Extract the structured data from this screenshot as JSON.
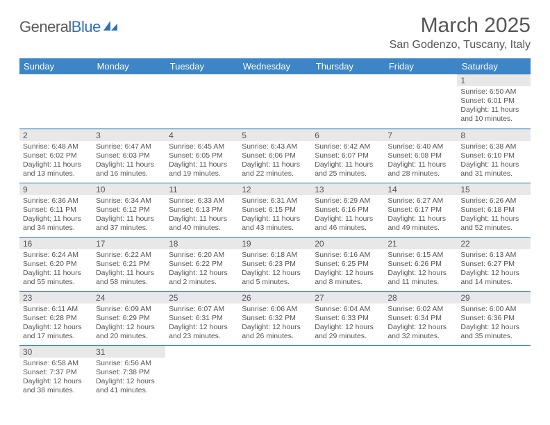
{
  "logo": {
    "general": "General",
    "blue": "Blue"
  },
  "title": {
    "month": "March 2025",
    "location": "San Godenzo, Tuscany, Italy"
  },
  "colors": {
    "header_bg": "#3d85c6",
    "header_text": "#ffffff",
    "daynum_bg": "#e8e8e8",
    "border": "#3d85c6",
    "text": "#555555",
    "logo_blue": "#2d72b5"
  },
  "weekdays": [
    "Sunday",
    "Monday",
    "Tuesday",
    "Wednesday",
    "Thursday",
    "Friday",
    "Saturday"
  ],
  "weeks": [
    [
      {
        "n": "",
        "sr": "",
        "ss": "",
        "dl1": "",
        "dl2": "",
        "empty": true
      },
      {
        "n": "",
        "sr": "",
        "ss": "",
        "dl1": "",
        "dl2": "",
        "empty": true
      },
      {
        "n": "",
        "sr": "",
        "ss": "",
        "dl1": "",
        "dl2": "",
        "empty": true
      },
      {
        "n": "",
        "sr": "",
        "ss": "",
        "dl1": "",
        "dl2": "",
        "empty": true
      },
      {
        "n": "",
        "sr": "",
        "ss": "",
        "dl1": "",
        "dl2": "",
        "empty": true
      },
      {
        "n": "",
        "sr": "",
        "ss": "",
        "dl1": "",
        "dl2": "",
        "empty": true
      },
      {
        "n": "1",
        "sr": "Sunrise: 6:50 AM",
        "ss": "Sunset: 6:01 PM",
        "dl1": "Daylight: 11 hours",
        "dl2": "and 10 minutes."
      }
    ],
    [
      {
        "n": "2",
        "sr": "Sunrise: 6:48 AM",
        "ss": "Sunset: 6:02 PM",
        "dl1": "Daylight: 11 hours",
        "dl2": "and 13 minutes."
      },
      {
        "n": "3",
        "sr": "Sunrise: 6:47 AM",
        "ss": "Sunset: 6:03 PM",
        "dl1": "Daylight: 11 hours",
        "dl2": "and 16 minutes."
      },
      {
        "n": "4",
        "sr": "Sunrise: 6:45 AM",
        "ss": "Sunset: 6:05 PM",
        "dl1": "Daylight: 11 hours",
        "dl2": "and 19 minutes."
      },
      {
        "n": "5",
        "sr": "Sunrise: 6:43 AM",
        "ss": "Sunset: 6:06 PM",
        "dl1": "Daylight: 11 hours",
        "dl2": "and 22 minutes."
      },
      {
        "n": "6",
        "sr": "Sunrise: 6:42 AM",
        "ss": "Sunset: 6:07 PM",
        "dl1": "Daylight: 11 hours",
        "dl2": "and 25 minutes."
      },
      {
        "n": "7",
        "sr": "Sunrise: 6:40 AM",
        "ss": "Sunset: 6:08 PM",
        "dl1": "Daylight: 11 hours",
        "dl2": "and 28 minutes."
      },
      {
        "n": "8",
        "sr": "Sunrise: 6:38 AM",
        "ss": "Sunset: 6:10 PM",
        "dl1": "Daylight: 11 hours",
        "dl2": "and 31 minutes."
      }
    ],
    [
      {
        "n": "9",
        "sr": "Sunrise: 6:36 AM",
        "ss": "Sunset: 6:11 PM",
        "dl1": "Daylight: 11 hours",
        "dl2": "and 34 minutes."
      },
      {
        "n": "10",
        "sr": "Sunrise: 6:34 AM",
        "ss": "Sunset: 6:12 PM",
        "dl1": "Daylight: 11 hours",
        "dl2": "and 37 minutes."
      },
      {
        "n": "11",
        "sr": "Sunrise: 6:33 AM",
        "ss": "Sunset: 6:13 PM",
        "dl1": "Daylight: 11 hours",
        "dl2": "and 40 minutes."
      },
      {
        "n": "12",
        "sr": "Sunrise: 6:31 AM",
        "ss": "Sunset: 6:15 PM",
        "dl1": "Daylight: 11 hours",
        "dl2": "and 43 minutes."
      },
      {
        "n": "13",
        "sr": "Sunrise: 6:29 AM",
        "ss": "Sunset: 6:16 PM",
        "dl1": "Daylight: 11 hours",
        "dl2": "and 46 minutes."
      },
      {
        "n": "14",
        "sr": "Sunrise: 6:27 AM",
        "ss": "Sunset: 6:17 PM",
        "dl1": "Daylight: 11 hours",
        "dl2": "and 49 minutes."
      },
      {
        "n": "15",
        "sr": "Sunrise: 6:26 AM",
        "ss": "Sunset: 6:18 PM",
        "dl1": "Daylight: 11 hours",
        "dl2": "and 52 minutes."
      }
    ],
    [
      {
        "n": "16",
        "sr": "Sunrise: 6:24 AM",
        "ss": "Sunset: 6:20 PM",
        "dl1": "Daylight: 11 hours",
        "dl2": "and 55 minutes."
      },
      {
        "n": "17",
        "sr": "Sunrise: 6:22 AM",
        "ss": "Sunset: 6:21 PM",
        "dl1": "Daylight: 11 hours",
        "dl2": "and 58 minutes."
      },
      {
        "n": "18",
        "sr": "Sunrise: 6:20 AM",
        "ss": "Sunset: 6:22 PM",
        "dl1": "Daylight: 12 hours",
        "dl2": "and 2 minutes."
      },
      {
        "n": "19",
        "sr": "Sunrise: 6:18 AM",
        "ss": "Sunset: 6:23 PM",
        "dl1": "Daylight: 12 hours",
        "dl2": "and 5 minutes."
      },
      {
        "n": "20",
        "sr": "Sunrise: 6:16 AM",
        "ss": "Sunset: 6:25 PM",
        "dl1": "Daylight: 12 hours",
        "dl2": "and 8 minutes."
      },
      {
        "n": "21",
        "sr": "Sunrise: 6:15 AM",
        "ss": "Sunset: 6:26 PM",
        "dl1": "Daylight: 12 hours",
        "dl2": "and 11 minutes."
      },
      {
        "n": "22",
        "sr": "Sunrise: 6:13 AM",
        "ss": "Sunset: 6:27 PM",
        "dl1": "Daylight: 12 hours",
        "dl2": "and 14 minutes."
      }
    ],
    [
      {
        "n": "23",
        "sr": "Sunrise: 6:11 AM",
        "ss": "Sunset: 6:28 PM",
        "dl1": "Daylight: 12 hours",
        "dl2": "and 17 minutes."
      },
      {
        "n": "24",
        "sr": "Sunrise: 6:09 AM",
        "ss": "Sunset: 6:29 PM",
        "dl1": "Daylight: 12 hours",
        "dl2": "and 20 minutes."
      },
      {
        "n": "25",
        "sr": "Sunrise: 6:07 AM",
        "ss": "Sunset: 6:31 PM",
        "dl1": "Daylight: 12 hours",
        "dl2": "and 23 minutes."
      },
      {
        "n": "26",
        "sr": "Sunrise: 6:06 AM",
        "ss": "Sunset: 6:32 PM",
        "dl1": "Daylight: 12 hours",
        "dl2": "and 26 minutes."
      },
      {
        "n": "27",
        "sr": "Sunrise: 6:04 AM",
        "ss": "Sunset: 6:33 PM",
        "dl1": "Daylight: 12 hours",
        "dl2": "and 29 minutes."
      },
      {
        "n": "28",
        "sr": "Sunrise: 6:02 AM",
        "ss": "Sunset: 6:34 PM",
        "dl1": "Daylight: 12 hours",
        "dl2": "and 32 minutes."
      },
      {
        "n": "29",
        "sr": "Sunrise: 6:00 AM",
        "ss": "Sunset: 6:36 PM",
        "dl1": "Daylight: 12 hours",
        "dl2": "and 35 minutes."
      }
    ],
    [
      {
        "n": "30",
        "sr": "Sunrise: 6:58 AM",
        "ss": "Sunset: 7:37 PM",
        "dl1": "Daylight: 12 hours",
        "dl2": "and 38 minutes."
      },
      {
        "n": "31",
        "sr": "Sunrise: 6:56 AM",
        "ss": "Sunset: 7:38 PM",
        "dl1": "Daylight: 12 hours",
        "dl2": "and 41 minutes."
      },
      {
        "n": "",
        "sr": "",
        "ss": "",
        "dl1": "",
        "dl2": "",
        "empty": true
      },
      {
        "n": "",
        "sr": "",
        "ss": "",
        "dl1": "",
        "dl2": "",
        "empty": true
      },
      {
        "n": "",
        "sr": "",
        "ss": "",
        "dl1": "",
        "dl2": "",
        "empty": true
      },
      {
        "n": "",
        "sr": "",
        "ss": "",
        "dl1": "",
        "dl2": "",
        "empty": true
      },
      {
        "n": "",
        "sr": "",
        "ss": "",
        "dl1": "",
        "dl2": "",
        "empty": true
      }
    ]
  ]
}
